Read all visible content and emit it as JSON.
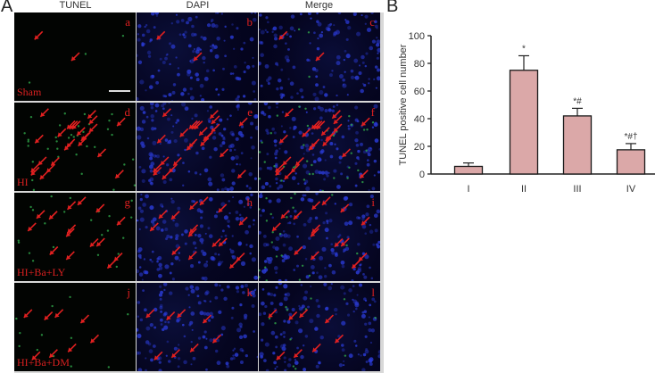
{
  "figure": {
    "panel_a_label": "A",
    "panel_b_label": "B",
    "columns": [
      "TUNEL",
      "DAPI",
      "Merge"
    ],
    "rows": [
      {
        "group": "Sham",
        "letters": [
          "a",
          "b",
          "c"
        ],
        "arrows": 2
      },
      {
        "group": "HI",
        "letters": [
          "d",
          "e",
          "f"
        ],
        "arrows": 24
      },
      {
        "group": "HI+Ba+LY",
        "letters": [
          "g",
          "h",
          "i"
        ],
        "arrows": 15
      },
      {
        "group": "HI+Ba+DM",
        "letters": [
          "j",
          "k",
          "l"
        ],
        "arrows": 8
      }
    ],
    "colors": {
      "arrow": "#e02020",
      "tunel": "#2fa84a",
      "dapi": "#2a3bd6",
      "bar_fill": "#dba8a8",
      "bar_stroke": "#1a1a1a"
    }
  },
  "chart_data": {
    "type": "bar",
    "title": "",
    "xlabel": "",
    "ylabel": "TUNEL positive cell number",
    "categories": [
      "I",
      "II",
      "III",
      "IV"
    ],
    "values": [
      5.5,
      75,
      42,
      17.5
    ],
    "error_upper": [
      8,
      85.5,
      47.5,
      22
    ],
    "annotations": [
      "",
      "*",
      "*#",
      "*#†"
    ],
    "ylim": [
      0,
      100
    ],
    "yticks": [
      0,
      20,
      40,
      60,
      80,
      100
    ],
    "grid": false,
    "legend": null
  }
}
